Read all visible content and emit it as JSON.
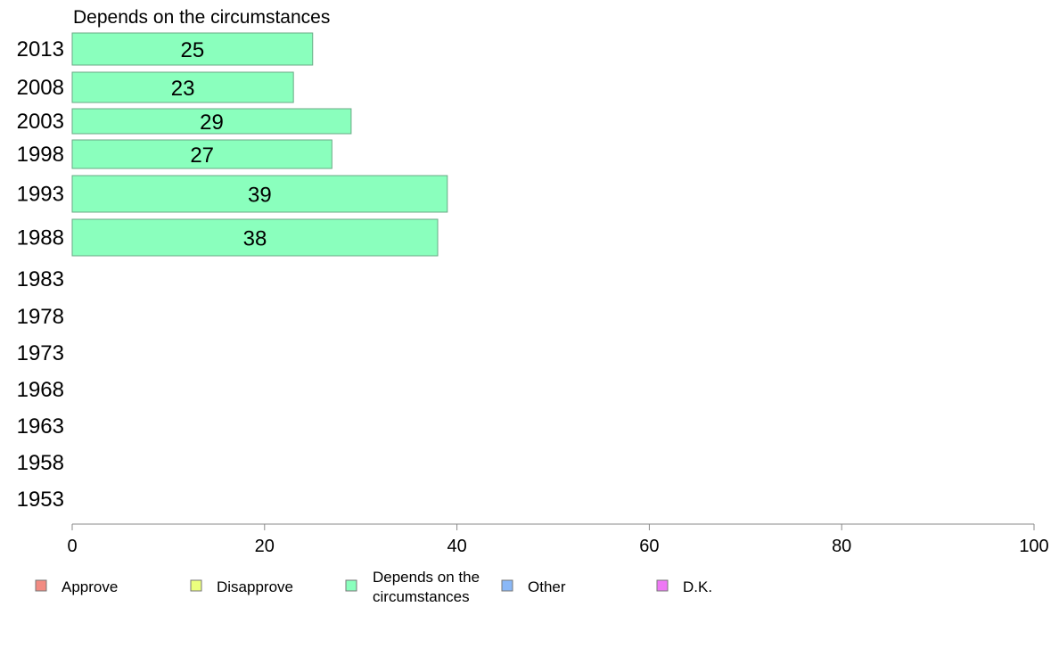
{
  "chart_data": {
    "type": "bar",
    "orientation": "horizontal",
    "title": "Depends on the circumstances",
    "categories": [
      "2013",
      "2008",
      "2003",
      "1998",
      "1993",
      "1988",
      "1983",
      "1978",
      "1973",
      "1968",
      "1963",
      "1958",
      "1953"
    ],
    "series": [
      {
        "name": "Depends on the circumstances",
        "color": "#8affbd",
        "values": [
          25,
          23,
          29,
          27,
          39,
          38,
          null,
          null,
          null,
          null,
          null,
          null,
          null
        ]
      }
    ],
    "xlim": [
      0,
      100
    ],
    "xticks": [
      "0",
      "20",
      "40",
      "60",
      "80",
      "100"
    ],
    "grid": false,
    "legend_position": "bottom",
    "legend": [
      {
        "label": [
          "Approve"
        ],
        "color": "#f28b82"
      },
      {
        "label": [
          "Disapprove"
        ],
        "color": "#ecff7d"
      },
      {
        "label": [
          "Depends on the",
          "circumstances"
        ],
        "color": "#8affbd"
      },
      {
        "label": [
          "Other"
        ],
        "color": "#8ab8f7"
      },
      {
        "label": [
          "D.K."
        ],
        "color": "#ee78f5"
      }
    ]
  }
}
